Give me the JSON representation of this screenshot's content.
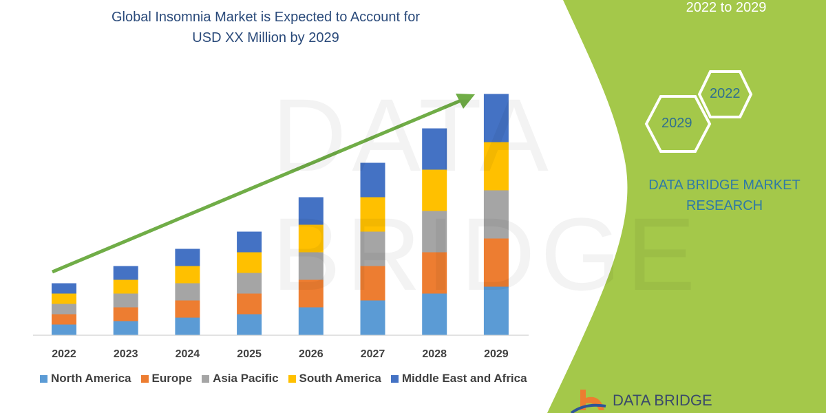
{
  "title_lines": [
    "Global Insomnia Market is Expected to Account for",
    "USD XX Million by 2029"
  ],
  "side_panel": {
    "period": "2022 to 2029",
    "hex_labels": [
      "2022",
      "2029"
    ],
    "brand": [
      "DATA BRIDGE MARKET",
      "RESEARCH"
    ],
    "logo_text": "DATA BRIDGE",
    "watermark": "DATA BRIDGE",
    "accent": "#a4c84a"
  },
  "chart_data": {
    "type": "bar",
    "stacked": true,
    "categories": [
      "2022",
      "2023",
      "2024",
      "2025",
      "2026",
      "2027",
      "2028",
      "2029"
    ],
    "series": [
      {
        "name": "North America",
        "color": "#5b9bd5",
        "values": [
          15,
          20,
          25,
          30,
          40,
          50,
          60,
          70
        ]
      },
      {
        "name": "Europe",
        "color": "#ed7d31",
        "values": [
          15,
          20,
          25,
          30,
          40,
          50,
          60,
          70
        ]
      },
      {
        "name": "Asia Pacific",
        "color": "#a5a5a5",
        "values": [
          15,
          20,
          25,
          30,
          40,
          50,
          60,
          70
        ]
      },
      {
        "name": "South America",
        "color": "#ffc000",
        "values": [
          15,
          20,
          25,
          30,
          40,
          50,
          60,
          70
        ]
      },
      {
        "name": "Middle East and Africa",
        "color": "#4472c4",
        "values": [
          15,
          20,
          25,
          30,
          40,
          50,
          60,
          70
        ]
      }
    ],
    "legend": "bottom",
    "grid": false,
    "trend_arrow_color": "#70ad47"
  }
}
